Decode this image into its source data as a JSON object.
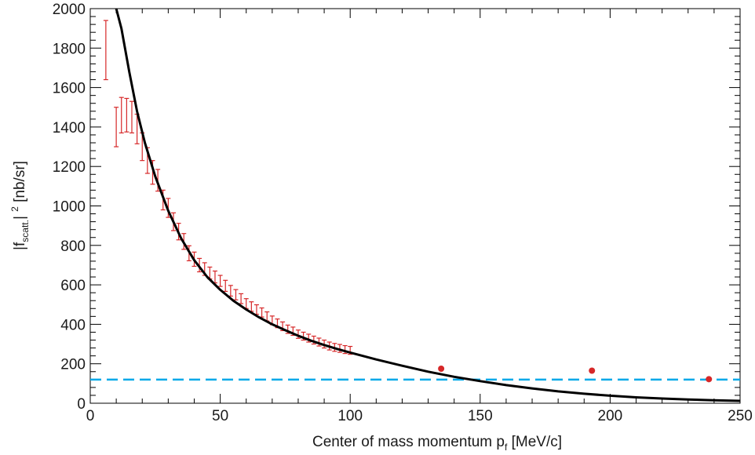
{
  "chart_data": {
    "type": "scatter",
    "xlabel": {
      "main": "Center of mass momentum p",
      "sub": "f",
      "unit": "[MeV/c]"
    },
    "ylabel": {
      "pre": "|f",
      "sub": "scatt.",
      "sup": "2",
      "post": "| ",
      "unit": "[nb/sr]"
    },
    "xlim": [
      0,
      250
    ],
    "ylim": [
      0,
      2000
    ],
    "x_ticks": [
      "0",
      "50",
      "100",
      "150",
      "200",
      "250"
    ],
    "y_ticks": [
      "0",
      "200",
      "400",
      "600",
      "800",
      "1000",
      "1200",
      "1400",
      "1600",
      "1800",
      "2000"
    ],
    "grid": false,
    "colors": {
      "data": "#d62728",
      "fit": "#000000",
      "dashed": "#00a8e8"
    },
    "series": [
      {
        "style": "errorbars",
        "color": "#d62728",
        "points": [
          [
            6,
            1790,
            150
          ],
          [
            10,
            1400,
            100
          ],
          [
            12,
            1460,
            90
          ],
          [
            14,
            1460,
            85
          ],
          [
            16,
            1450,
            80
          ],
          [
            18,
            1390,
            75
          ],
          [
            20,
            1300,
            70
          ],
          [
            22,
            1230,
            65
          ],
          [
            24,
            1170,
            60
          ],
          [
            26,
            1130,
            55
          ],
          [
            28,
            1030,
            50
          ],
          [
            30,
            990,
            48
          ],
          [
            32,
            920,
            45
          ],
          [
            34,
            870,
            42
          ],
          [
            36,
            820,
            40
          ],
          [
            38,
            760,
            38
          ],
          [
            40,
            730,
            36
          ],
          [
            42,
            700,
            34
          ],
          [
            44,
            680,
            32
          ],
          [
            46,
            660,
            30
          ],
          [
            48,
            640,
            30
          ],
          [
            50,
            620,
            28
          ],
          [
            52,
            595,
            28
          ],
          [
            54,
            570,
            27
          ],
          [
            56,
            550,
            26
          ],
          [
            58,
            530,
            25
          ],
          [
            60,
            505,
            25
          ],
          [
            62,
            490,
            24
          ],
          [
            64,
            475,
            24
          ],
          [
            66,
            460,
            23
          ],
          [
            68,
            440,
            23
          ],
          [
            70,
            420,
            22
          ],
          [
            72,
            405,
            22
          ],
          [
            74,
            390,
            22
          ],
          [
            76,
            375,
            21
          ],
          [
            78,
            365,
            21
          ],
          [
            80,
            350,
            21
          ],
          [
            82,
            340,
            20
          ],
          [
            84,
            330,
            20
          ],
          [
            86,
            320,
            20
          ],
          [
            88,
            310,
            20
          ],
          [
            90,
            300,
            20
          ],
          [
            92,
            290,
            20
          ],
          [
            94,
            283,
            20
          ],
          [
            96,
            278,
            20
          ],
          [
            98,
            272,
            20
          ],
          [
            100,
            268,
            20
          ]
        ]
      },
      {
        "style": "dots",
        "color": "#d62728",
        "points": [
          [
            135,
            175
          ],
          [
            193,
            165
          ],
          [
            238,
            122
          ]
        ]
      },
      {
        "style": "curve",
        "color": "#000000",
        "x": [
          10,
          12,
          15,
          18,
          21,
          25,
          30,
          35,
          40,
          45,
          50,
          55,
          60,
          65,
          70,
          75,
          80,
          85,
          90,
          95,
          100,
          110,
          120,
          130,
          140,
          150,
          160,
          170,
          180,
          190,
          200,
          210,
          220,
          230,
          240,
          250
        ],
        "y": [
          2000,
          1900,
          1680,
          1480,
          1320,
          1150,
          975,
          835,
          725,
          640,
          575,
          520,
          475,
          435,
          400,
          370,
          342,
          317,
          295,
          275,
          257,
          222,
          190,
          160,
          134,
          112,
          92,
          75,
          60,
          48,
          38,
          30,
          24,
          19,
          15,
          12
        ]
      },
      {
        "style": "dashed-line",
        "color": "#00a8e8",
        "y": 120
      }
    ]
  }
}
